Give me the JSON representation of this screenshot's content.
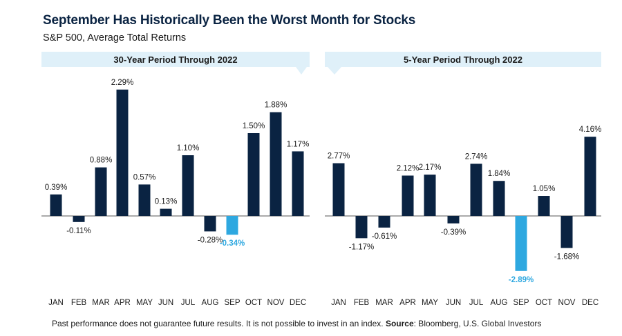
{
  "title": "September Has Historically Been the Worst Month for Stocks",
  "subtitle": "S&P 500, Average Total Returns",
  "footer": {
    "disclaimer": "Past performance does not guarantee future results. It is not possible to invest in an index.",
    "source_label": "Source",
    "source_text": ": Bloomberg, U.S. Global Investors"
  },
  "colors": {
    "bar": "#0a2342",
    "highlight": "#2ea8e0",
    "banner": "#dff0f9",
    "baseline": "#555555"
  },
  "chart_data": [
    {
      "type": "bar",
      "title": "30-Year Period Through 2022",
      "categories": [
        "JAN",
        "FEB",
        "MAR",
        "APR",
        "MAY",
        "JUN",
        "JUL",
        "AUG",
        "SEP",
        "OCT",
        "NOV",
        "DEC"
      ],
      "values": [
        0.39,
        -0.11,
        0.88,
        2.29,
        0.57,
        0.13,
        1.1,
        -0.28,
        -0.34,
        1.5,
        1.88,
        1.17
      ],
      "labels": [
        "0.39%",
        "-0.11%",
        "0.88%",
        "2.29%",
        "0.57%",
        "0.13%",
        "1.10%",
        "-0.28%",
        "-0.34%",
        "1.50%",
        "1.88%",
        "1.17%"
      ],
      "highlight_category": "SEP",
      "ylim": [
        -0.62,
        2.55
      ]
    },
    {
      "type": "bar",
      "title": "5-Year Period Through 2022",
      "categories": [
        "JAN",
        "FEB",
        "MAR",
        "APR",
        "MAY",
        "JUN",
        "JUL",
        "AUG",
        "SEP",
        "OCT",
        "NOV",
        "DEC"
      ],
      "values": [
        2.77,
        -1.17,
        -0.61,
        2.12,
        2.17,
        -0.39,
        2.74,
        1.84,
        -2.89,
        1.05,
        -1.68,
        4.16
      ],
      "labels": [
        "2.77%",
        "-1.17%",
        "-0.61%",
        "2.12%",
        "2.17%",
        "-0.39%",
        "2.74%",
        "1.84%",
        "-2.89%",
        "1.05%",
        "-1.68%",
        "4.16%"
      ],
      "highlight_category": "SEP",
      "ylim": [
        -5.8,
        5.8
      ]
    }
  ]
}
